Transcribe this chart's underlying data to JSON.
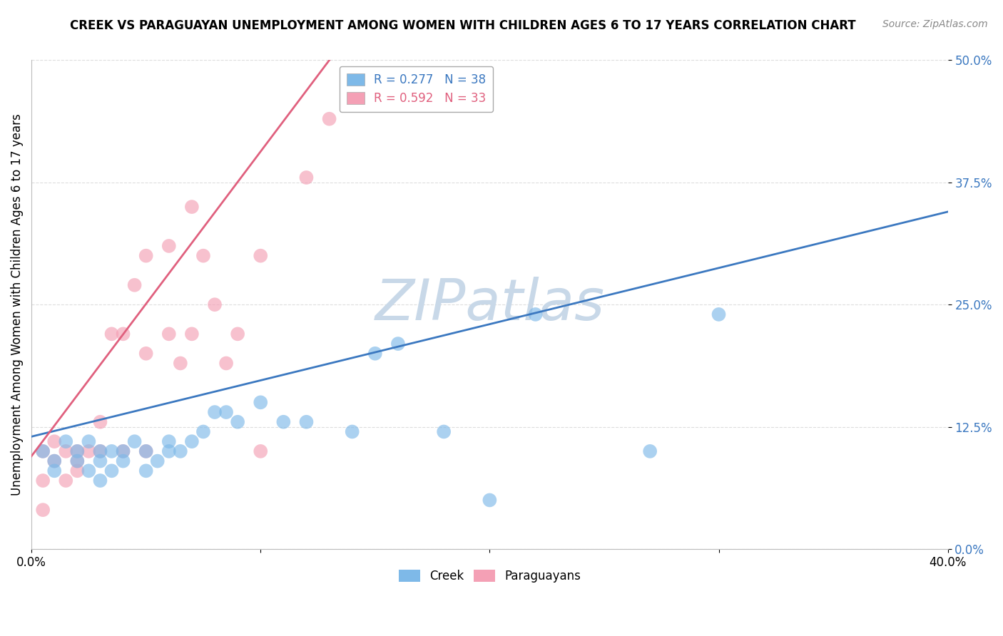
{
  "title": "CREEK VS PARAGUAYAN UNEMPLOYMENT AMONG WOMEN WITH CHILDREN AGES 6 TO 17 YEARS CORRELATION CHART",
  "source": "Source: ZipAtlas.com",
  "ylabel": "Unemployment Among Women with Children Ages 6 to 17 years",
  "xlim": [
    0,
    0.4
  ],
  "ylim": [
    0,
    0.5
  ],
  "xticks": [
    0.0,
    0.1,
    0.2,
    0.3,
    0.4
  ],
  "xticklabels": [
    "0.0%",
    "",
    "",
    "",
    "40.0%"
  ],
  "yticks": [
    0.0,
    0.125,
    0.25,
    0.375,
    0.5
  ],
  "yticklabels": [
    "0.0%",
    "12.5%",
    "25.0%",
    "37.5%",
    "50.0%"
  ],
  "creek_color": "#7EB9E8",
  "paraguayan_color": "#F4A0B5",
  "creek_line_color": "#3B78C0",
  "paraguayan_line_color": "#E0607E",
  "R_creek": 0.277,
  "N_creek": 38,
  "R_paraguayan": 0.592,
  "N_paraguayan": 33,
  "watermark": "ZIPatlas",
  "watermark_color": "#C8D8E8",
  "creek_x": [
    0.005,
    0.01,
    0.01,
    0.015,
    0.02,
    0.02,
    0.025,
    0.025,
    0.03,
    0.03,
    0.03,
    0.035,
    0.035,
    0.04,
    0.04,
    0.045,
    0.05,
    0.05,
    0.055,
    0.06,
    0.06,
    0.065,
    0.07,
    0.075,
    0.08,
    0.085,
    0.09,
    0.1,
    0.11,
    0.12,
    0.14,
    0.15,
    0.16,
    0.18,
    0.2,
    0.22,
    0.27,
    0.3
  ],
  "creek_y": [
    0.1,
    0.09,
    0.08,
    0.11,
    0.1,
    0.09,
    0.08,
    0.11,
    0.07,
    0.09,
    0.1,
    0.08,
    0.1,
    0.09,
    0.1,
    0.11,
    0.08,
    0.1,
    0.09,
    0.1,
    0.11,
    0.1,
    0.11,
    0.12,
    0.14,
    0.14,
    0.13,
    0.15,
    0.13,
    0.13,
    0.12,
    0.2,
    0.21,
    0.12,
    0.05,
    0.24,
    0.1,
    0.24
  ],
  "paraguayan_x": [
    0.005,
    0.005,
    0.005,
    0.01,
    0.01,
    0.015,
    0.015,
    0.02,
    0.02,
    0.02,
    0.025,
    0.03,
    0.03,
    0.035,
    0.04,
    0.04,
    0.045,
    0.05,
    0.05,
    0.05,
    0.06,
    0.06,
    0.065,
    0.07,
    0.07,
    0.075,
    0.08,
    0.085,
    0.09,
    0.1,
    0.1,
    0.12,
    0.13
  ],
  "paraguayan_y": [
    0.04,
    0.07,
    0.1,
    0.09,
    0.11,
    0.07,
    0.1,
    0.08,
    0.09,
    0.1,
    0.1,
    0.1,
    0.13,
    0.22,
    0.1,
    0.22,
    0.27,
    0.1,
    0.2,
    0.3,
    0.22,
    0.31,
    0.19,
    0.22,
    0.35,
    0.3,
    0.25,
    0.19,
    0.22,
    0.1,
    0.3,
    0.38,
    0.44
  ],
  "creek_line_x": [
    0.0,
    0.4
  ],
  "creek_line_y": [
    0.115,
    0.345
  ],
  "paraguayan_line_x": [
    0.0,
    0.13
  ],
  "paraguayan_line_y": [
    0.095,
    0.5
  ]
}
